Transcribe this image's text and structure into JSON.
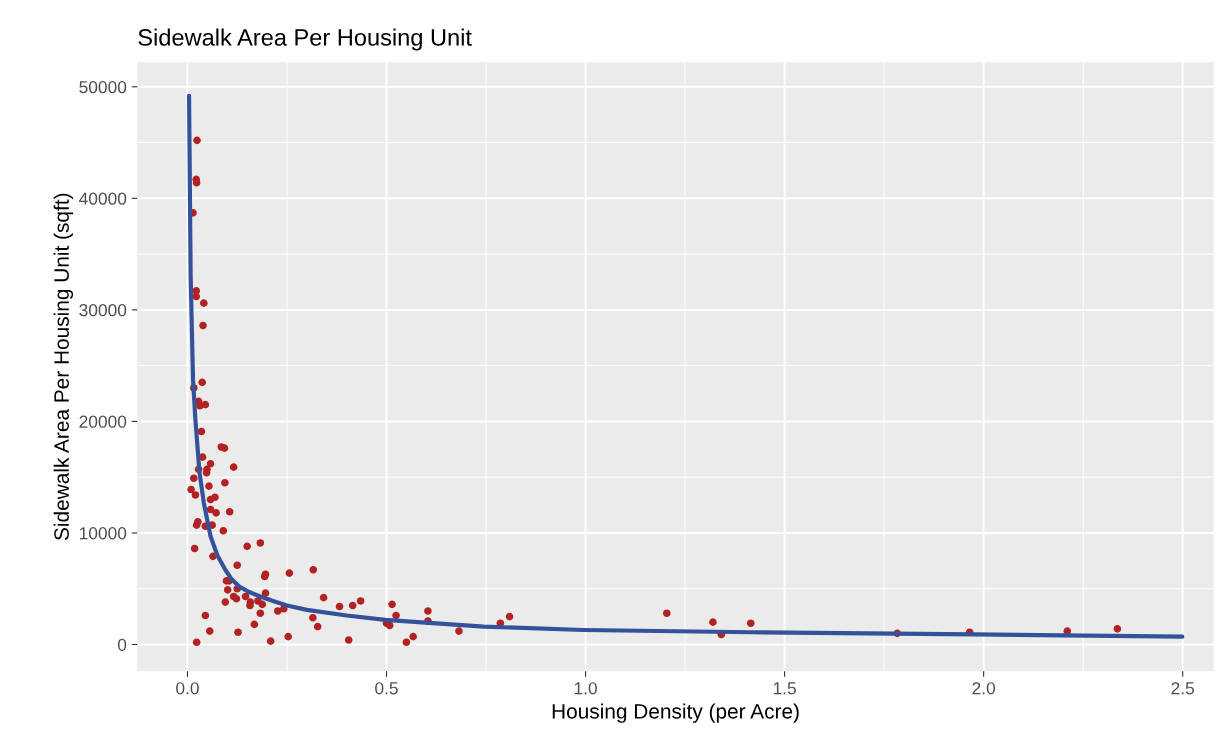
{
  "chart_data": {
    "type": "scatter",
    "title": "Sidewalk Area Per Housing Unit",
    "xlabel": "Housing Density (per Acre)",
    "ylabel": "Sidewalk Area Per Housing Unit (sqft)",
    "xlim": [
      -0.126,
      2.578
    ],
    "ylim": [
      -2400,
      52200
    ],
    "xticks": [
      {
        "value": 0,
        "label": "0.0"
      },
      {
        "value": 0.5,
        "label": "0.5"
      },
      {
        "value": 1,
        "label": "1.0"
      },
      {
        "value": 1.5,
        "label": "1.5"
      },
      {
        "value": 2,
        "label": "2.0"
      },
      {
        "value": 2.5,
        "label": "2.5"
      }
    ],
    "yticks": [
      0,
      10000,
      20000,
      30000,
      40000,
      50000
    ],
    "grid": true,
    "marker": "circle",
    "series": [
      {
        "color": "#b22222",
        "x": [
          0.024,
          0.022,
          0.023,
          0.014,
          0.022,
          0.022,
          0.041,
          0.039,
          0.037,
          0.016,
          0.028,
          0.045,
          0.031,
          0.035,
          0.085,
          0.093,
          0.038,
          0.058,
          0.049,
          0.048,
          0.028,
          0.116,
          0.016,
          0.054,
          0.094,
          0.009,
          0.02,
          0.069,
          0.058,
          0.058,
          0.072,
          0.106,
          0.026,
          0.023,
          0.062,
          0.045,
          0.09,
          0.018,
          0.15,
          0.183,
          0.064,
          0.125,
          0.196,
          0.194,
          0.256,
          0.316,
          0.098,
          0.105,
          0.101,
          0.125,
          0.116,
          0.123,
          0.146,
          0.196,
          0.158,
          0.177,
          0.157,
          0.188,
          0.095,
          0.183,
          0.227,
          0.242,
          0.315,
          0.327,
          0.045,
          0.168,
          0.056,
          0.127,
          0.253,
          0.209,
          0.023,
          0.342,
          0.382,
          0.415,
          0.435,
          0.405,
          0.514,
          0.524,
          0.508,
          0.5,
          0.55,
          0.567,
          0.604,
          0.604,
          0.682,
          0.786,
          0.809,
          1.204,
          1.32,
          1.341,
          1.415,
          1.783,
          1.965,
          2.21,
          2.336
        ],
        "values": [
          45200,
          41700,
          41400,
          38700,
          31700,
          31200,
          30600,
          28600,
          23500,
          23000,
          21800,
          21500,
          21400,
          19100,
          17700,
          17600,
          16800,
          16200,
          15700,
          15400,
          15700,
          15900,
          14900,
          14200,
          14500,
          13900,
          13400,
          13200,
          13000,
          12100,
          11800,
          11900,
          11000,
          10700,
          10700,
          10600,
          10200,
          8600,
          8800,
          9100,
          7900,
          7100,
          6300,
          6100,
          6400,
          6700,
          5700,
          5700,
          4900,
          5000,
          4300,
          4100,
          4300,
          4600,
          3800,
          3900,
          3500,
          3600,
          3800,
          2800,
          3000,
          3200,
          2400,
          1600,
          2600,
          1800,
          1200,
          1100,
          700,
          300,
          200,
          4200,
          3400,
          3500,
          3900,
          400,
          3600,
          2600,
          1700,
          1900,
          200,
          700,
          3000,
          2100,
          1200,
          1900,
          2500,
          2800,
          2000,
          900,
          1900,
          1000,
          1100,
          1200,
          1400
        ]
      },
      {
        "type": "line",
        "color": "#34529a",
        "marker": "none",
        "line_style": "solid",
        "x": [
          0.004,
          0.008,
          0.014,
          0.02,
          0.03,
          0.041,
          0.058,
          0.075,
          0.095,
          0.11,
          0.13,
          0.155,
          0.183,
          0.215,
          0.25,
          0.3,
          0.4,
          0.497,
          0.744,
          0.995,
          1.415,
          1.975,
          2.499
        ],
        "values": [
          49200,
          33000,
          23700,
          20100,
          15500,
          12700,
          9700,
          8000,
          6700,
          5900,
          5200,
          4700,
          4300,
          3900,
          3500,
          3100,
          2600,
          2200,
          1600,
          1300,
          1100,
          900,
          700
        ]
      }
    ]
  }
}
